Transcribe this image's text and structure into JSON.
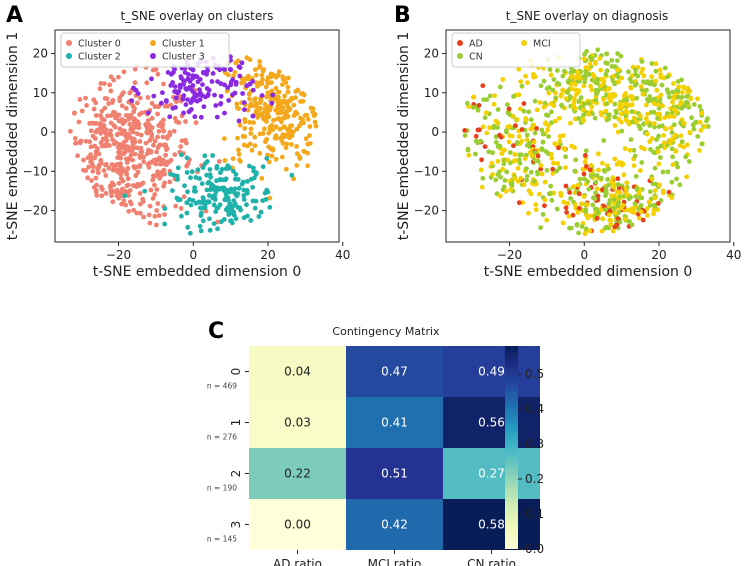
{
  "panel_labels": [
    "A",
    "B",
    "C"
  ],
  "chart_data": [
    {
      "type": "scatter",
      "title": "t_SNE overlay on clusters",
      "xlabel": "t-SNE embedded dimension 0",
      "ylabel": "t-SNE embedded dimension 1",
      "xlim": [
        -37,
        39
      ],
      "ylim": [
        -28,
        26
      ],
      "xticks": [
        -20,
        0,
        20,
        40
      ],
      "yticks": [
        -20,
        -10,
        0,
        10,
        20
      ],
      "legend_position": "top-left",
      "series": [
        {
          "name": "Cluster 0",
          "color": "#f08070",
          "count": 469
        },
        {
          "name": "Cluster 1",
          "color": "#f4a81c",
          "count": 276
        },
        {
          "name": "Cluster 2",
          "color": "#20b2aa",
          "count": 190
        },
        {
          "name": "Cluster 3",
          "color": "#8a2be2",
          "count": 145
        }
      ]
    },
    {
      "type": "scatter",
      "title": "t_SNE overlay on diagnosis",
      "xlabel": "t-SNE embedded dimension 0",
      "ylabel": "t-SNE embedded dimension 1",
      "xlim": [
        -37,
        39
      ],
      "ylim": [
        -28,
        26
      ],
      "xticks": [
        -20,
        0,
        20,
        40
      ],
      "yticks": [
        -20,
        -10,
        0,
        10,
        20
      ],
      "legend_position": "top-left",
      "series": [
        {
          "name": "AD",
          "color": "#e8401c",
          "count": 80
        },
        {
          "name": "MCI",
          "color": "#f5d000",
          "count": 500
        },
        {
          "name": "CN",
          "color": "#9acd32",
          "count": 500
        }
      ]
    },
    {
      "type": "heatmap",
      "title": "Contingency Matrix",
      "x_categories": [
        "AD ratio",
        "MCI ratio",
        "CN ratio"
      ],
      "y_categories": [
        "0",
        "1",
        "2",
        "3"
      ],
      "y_sublabels": [
        "n = 469",
        "n = 276",
        "n = 190",
        "n = 145"
      ],
      "values": [
        [
          0.04,
          0.47,
          0.49
        ],
        [
          0.03,
          0.41,
          0.56
        ],
        [
          0.22,
          0.51,
          0.27
        ],
        [
          0.0,
          0.42,
          0.58
        ]
      ],
      "value_labels": [
        [
          "0.04",
          "0.47",
          "0.49"
        ],
        [
          "0.03",
          "0.41",
          "0.56"
        ],
        [
          "0.22",
          "0.51",
          "0.27"
        ],
        [
          "0.00",
          "0.42",
          "0.58"
        ]
      ],
      "colorbar_range": [
        0.0,
        0.58
      ],
      "colorbar_ticks": [
        "0.0",
        "0.1",
        "0.2",
        "0.3",
        "0.4",
        "0.5"
      ],
      "colormap": "YlGnBu"
    }
  ]
}
